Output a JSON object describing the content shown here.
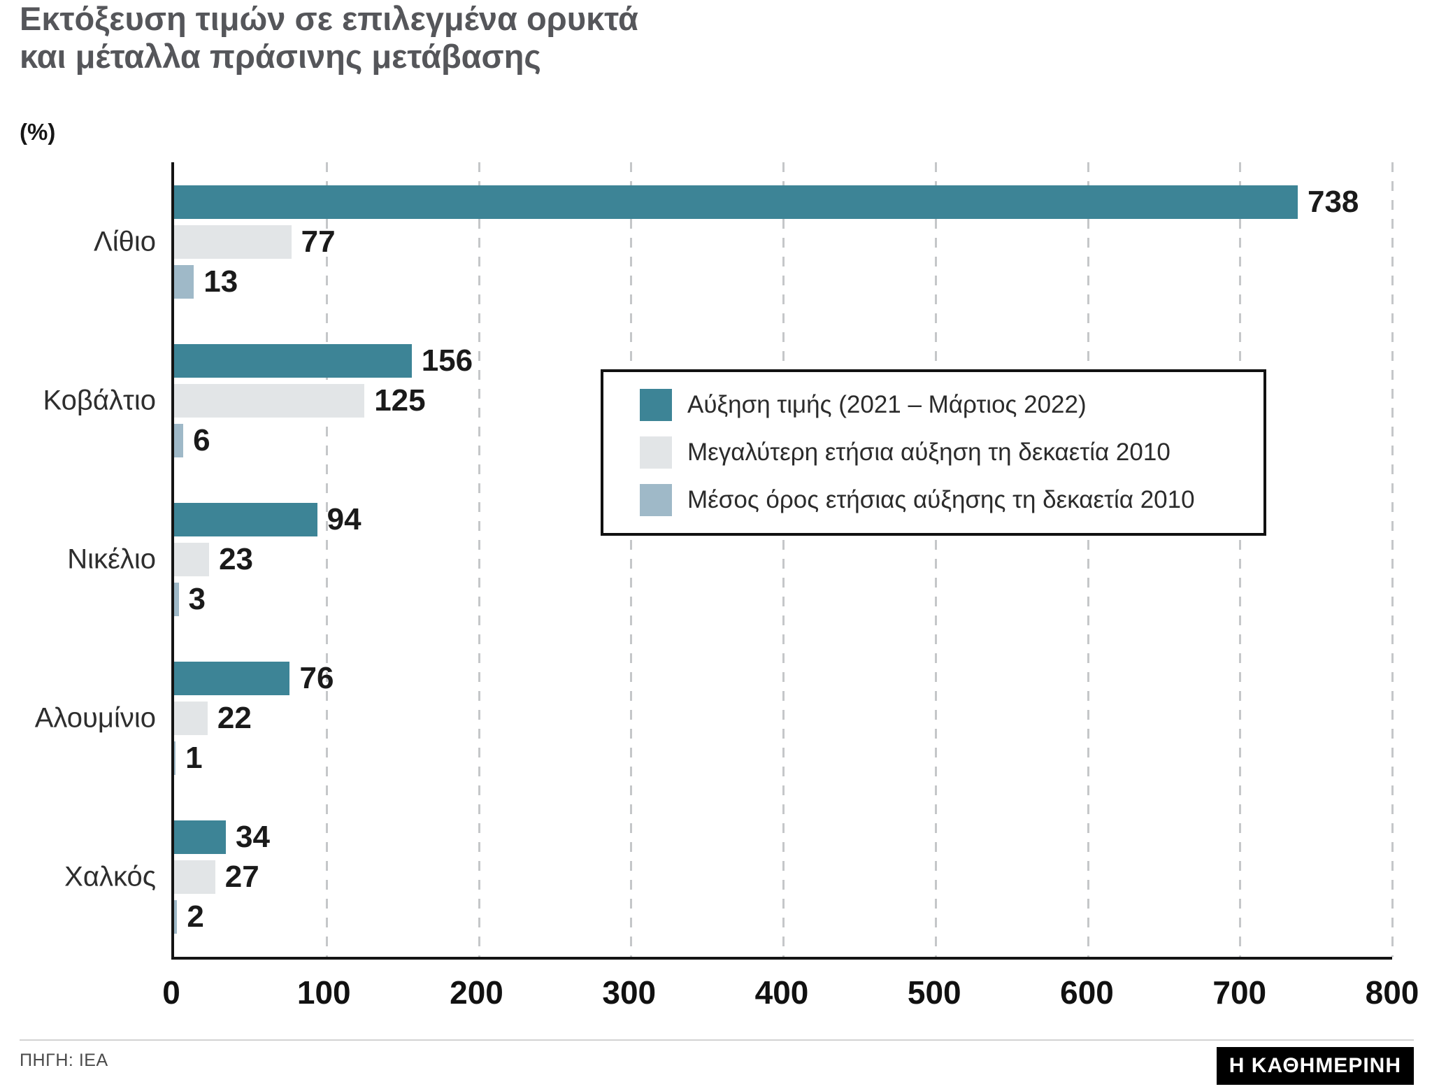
{
  "title": {
    "line1": "Εκτόξευση τιμών σε επιλεγμένα ορυκτά",
    "line2": "και μέταλλα πράσινης μετάβασης",
    "unit": "(%)"
  },
  "colors": {
    "axis": "#141414",
    "grid": "#c5c7c9",
    "title": "#55565a",
    "value_label": "#1a1a1a"
  },
  "chart_data": {
    "type": "bar",
    "orientation": "horizontal",
    "title": "Εκτόξευση τιμών σε επιλεγμένα ορυκτά και μέταλλα πράσινης μετάβασης",
    "unit": "%",
    "categories": [
      "Λίθιο",
      "Κοβάλτιο",
      "Νικέλιο",
      "Αλουμίνιο",
      "Χαλκός"
    ],
    "series": [
      {
        "name": "Αύξηση τιμής (2021 – Μάρτιος 2022)",
        "color": "#3d8496",
        "values": [
          738,
          156,
          94,
          76,
          34
        ]
      },
      {
        "name": "Μεγαλύτερη ετήσια αύξηση τη δεκαετία 2010",
        "color": "#e2e5e7",
        "values": [
          77,
          125,
          23,
          22,
          27
        ]
      },
      {
        "name": "Μέσος όρος ετήσιας αύξησης τη δεκαετία 2010",
        "color": "#9fb9c8",
        "values": [
          13,
          6,
          3,
          1,
          2
        ]
      }
    ],
    "xlim": [
      0,
      800
    ],
    "xticks": [
      0,
      100,
      200,
      300,
      400,
      500,
      600,
      700,
      800
    ],
    "grid": "vertical-dashed",
    "legend_position": "inside-center-right"
  },
  "footer": {
    "source": "ΠΗΓΗ: ΙΕΑ",
    "brand": "Η ΚΑΘΗΜΕΡΙΝΗ"
  }
}
